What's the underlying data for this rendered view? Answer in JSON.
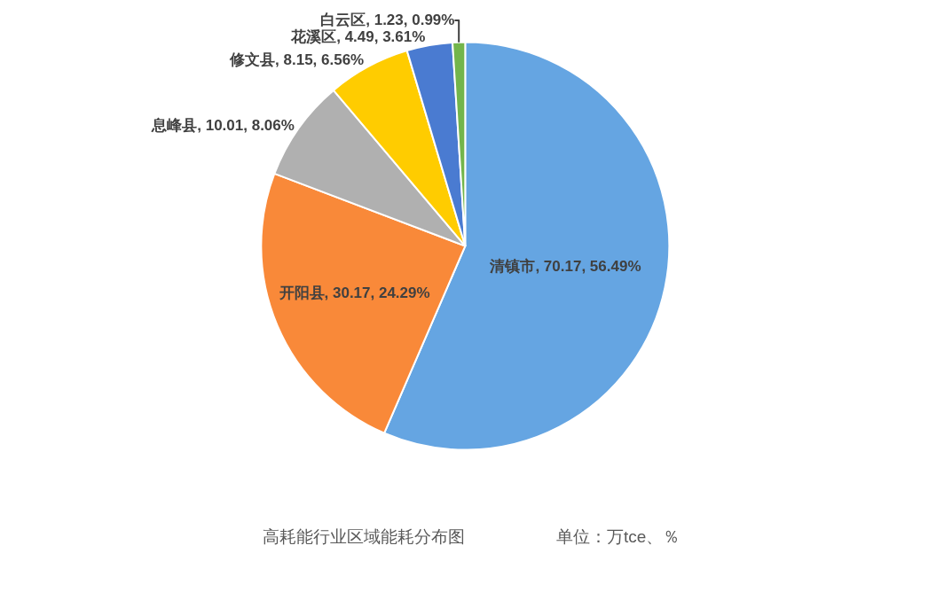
{
  "chart_data": {
    "type": "pie",
    "title": "高耗能行业区域能耗分布图",
    "subtitle": "单位：万tce、％",
    "categories": [
      "清镇市",
      "开阳县",
      "息峰县",
      "修文县",
      "花溪区",
      "白云区"
    ],
    "values": [
      70.17,
      30.17,
      10.01,
      8.15,
      4.49,
      1.23
    ],
    "colors": [
      "#65a5e2",
      "#f98939",
      "#b0b0b0",
      "#ffcc00",
      "#4a7bd1",
      "#73b54b"
    ],
    "value_labels": [
      "70.17, 56.49%",
      "30.17, 24.29%",
      "10.01, 8.06%",
      "8.15, 6.56%",
      "4.49, 3.61%",
      "1.23, 0.99%"
    ]
  }
}
